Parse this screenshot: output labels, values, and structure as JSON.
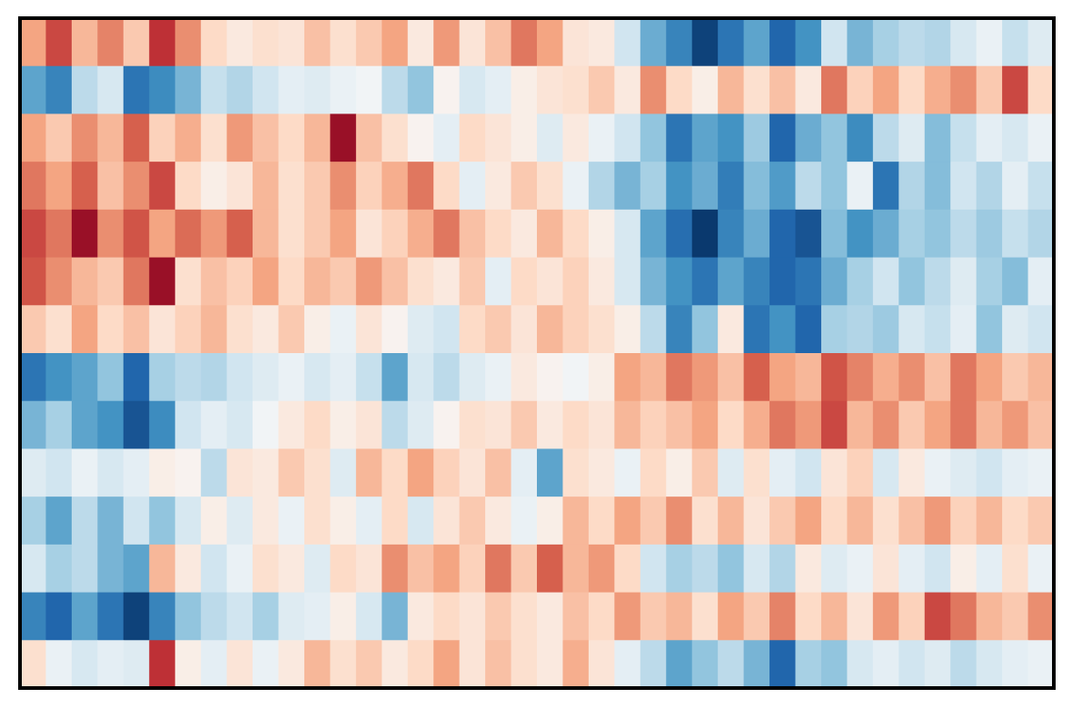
{
  "chart_data": {
    "type": "heatmap",
    "vlim": [
      -3,
      3
    ],
    "colorscale": [
      "#053061",
      "#2166ac",
      "#4393c3",
      "#92c5de",
      "#d1e5f0",
      "#f7f7f7",
      "#fddbc7",
      "#f4a582",
      "#d6604d",
      "#b2182b",
      "#67001f"
    ],
    "values": [
      [
        1.2,
        2.0,
        1.0,
        1.5,
        0.8,
        2.2,
        1.4,
        0.6,
        0.3,
        0.5,
        0.4,
        0.9,
        0.5,
        0.8,
        1.2,
        0.3,
        1.3,
        0.4,
        0.9,
        1.6,
        1.2,
        0.4,
        0.3,
        -0.6,
        -1.5,
        -2.0,
        -2.8,
        -2.2,
        -1.6,
        -2.4,
        -1.8,
        -0.6,
        -1.4,
        -1.0,
        -0.8,
        -0.9,
        -0.5,
        -0.2,
        -0.7,
        -0.4
      ],
      [
        -1.6,
        -2.0,
        -0.8,
        -0.5,
        -2.2,
        -1.9,
        -1.4,
        -0.7,
        -0.9,
        -0.6,
        -0.3,
        -0.4,
        -0.2,
        -0.1,
        -0.8,
        -1.2,
        0.1,
        -0.5,
        -0.3,
        0.2,
        0.4,
        0.5,
        0.8,
        0.3,
        1.4,
        0.6,
        0.2,
        1.0,
        0.5,
        0.9,
        0.3,
        1.6,
        0.7,
        1.2,
        0.6,
        1.1,
        1.4,
        0.8,
        2.0,
        0.6
      ],
      [
        1.2,
        0.8,
        1.4,
        1.0,
        1.8,
        0.7,
        1.1,
        0.5,
        1.3,
        0.9,
        0.6,
        1.0,
        2.6,
        0.9,
        0.5,
        0.1,
        -0.3,
        0.6,
        0.4,
        0.2,
        -0.4,
        0.3,
        -0.2,
        -0.6,
        -1.2,
        -2.2,
        -1.6,
        -1.8,
        -1.1,
        -2.4,
        -1.5,
        -1.2,
        -1.9,
        -0.8,
        -0.4,
        -1.3,
        -0.7,
        -0.3,
        -0.5,
        -0.2
      ],
      [
        1.6,
        1.2,
        1.8,
        0.9,
        1.4,
        2.0,
        0.6,
        0.2,
        0.4,
        1.0,
        0.5,
        0.8,
        1.4,
        0.7,
        1.1,
        1.6,
        0.6,
        -0.3,
        0.3,
        0.8,
        0.5,
        -0.2,
        -0.9,
        -1.4,
        -1.0,
        -1.8,
        -1.5,
        -2.1,
        -1.3,
        -1.7,
        -0.8,
        -1.2,
        -0.2,
        -2.2,
        -0.9,
        -1.3,
        -0.6,
        -0.9,
        -0.3,
        -0.7
      ],
      [
        2.0,
        1.6,
        2.6,
        1.4,
        1.9,
        1.2,
        1.7,
        1.3,
        1.8,
        1.0,
        0.5,
        0.8,
        1.2,
        0.4,
        0.7,
        1.1,
        1.6,
        0.9,
        0.6,
        0.3,
        1.0,
        0.6,
        0.2,
        -0.5,
        -1.6,
        -2.3,
        -2.9,
        -2.0,
        -1.5,
        -2.4,
        -2.6,
        -1.3,
        -1.8,
        -1.5,
        -1.0,
        -1.2,
        -0.8,
        -1.1,
        -0.7,
        -0.9
      ],
      [
        1.9,
        1.4,
        1.0,
        0.8,
        1.6,
        2.6,
        0.5,
        0.9,
        0.7,
        1.2,
        0.6,
        1.0,
        0.8,
        1.3,
        0.9,
        0.5,
        0.3,
        0.8,
        -0.3,
        0.6,
        0.4,
        0.7,
        0.3,
        -0.5,
        -1.4,
        -1.8,
        -2.2,
        -1.6,
        -2.0,
        -2.4,
        -2.2,
        -1.5,
        -1.0,
        -0.6,
        -1.2,
        -0.8,
        -0.4,
        -1.0,
        -1.3,
        -0.3
      ],
      [
        0.8,
        0.5,
        1.2,
        0.6,
        0.9,
        0.4,
        0.7,
        1.0,
        0.5,
        0.3,
        0.8,
        0.2,
        -0.2,
        0.4,
        0.1,
        -0.4,
        -0.6,
        0.6,
        0.8,
        0.4,
        1.0,
        0.7,
        0.5,
        0.2,
        -0.8,
        -2.0,
        -1.2,
        0.3,
        -2.2,
        -1.8,
        -2.4,
        -1.0,
        -0.9,
        -1.1,
        -0.5,
        -0.7,
        -0.3,
        -1.2,
        -0.4,
        -0.6
      ],
      [
        -2.2,
        -1.8,
        -1.6,
        -1.2,
        -2.4,
        -1.0,
        -0.8,
        -0.9,
        -0.6,
        -0.4,
        -0.2,
        -0.5,
        -0.3,
        -0.7,
        -1.6,
        -0.5,
        -0.8,
        -0.4,
        -0.2,
        0.3,
        0.1,
        -0.1,
        0.2,
        1.2,
        1.0,
        1.6,
        1.3,
        0.9,
        1.8,
        1.2,
        1.0,
        1.9,
        1.5,
        1.1,
        1.4,
        0.9,
        1.6,
        1.2,
        0.8,
        1.0
      ],
      [
        -1.4,
        -1.0,
        -1.6,
        -1.8,
        -2.6,
        -1.9,
        -0.6,
        -0.3,
        -0.5,
        -0.1,
        0.3,
        0.6,
        0.2,
        0.4,
        -0.8,
        -0.4,
        0.1,
        0.5,
        0.4,
        0.8,
        0.3,
        0.6,
        0.4,
        1.0,
        0.7,
        0.9,
        1.2,
        0.6,
        1.1,
        1.6,
        1.3,
        2.0,
        1.0,
        1.4,
        0.8,
        1.2,
        1.6,
        1.0,
        1.3,
        0.9
      ],
      [
        -0.4,
        -0.6,
        -0.2,
        -0.5,
        -0.3,
        0.2,
        0.1,
        -0.8,
        0.4,
        0.3,
        0.8,
        0.5,
        -0.4,
        1.0,
        0.6,
        1.2,
        0.7,
        0.4,
        0.9,
        -0.3,
        -1.6,
        0.5,
        0.3,
        -0.2,
        0.6,
        0.2,
        0.8,
        -0.4,
        0.5,
        -0.3,
        -0.6,
        0.4,
        0.7,
        -0.5,
        0.3,
        -0.2,
        -0.4,
        -0.6,
        -0.3,
        -0.2
      ],
      [
        -1.0,
        -1.6,
        -0.8,
        -1.4,
        -0.6,
        -1.2,
        -0.5,
        0.2,
        -0.4,
        0.3,
        -0.2,
        0.5,
        0.2,
        -0.3,
        0.6,
        -0.5,
        0.4,
        0.8,
        0.3,
        -0.2,
        0.2,
        1.0,
        0.6,
        1.2,
        0.8,
        1.4,
        0.5,
        1.0,
        0.4,
        0.8,
        1.2,
        0.6,
        1.0,
        0.5,
        0.9,
        1.3,
        0.7,
        1.0,
        0.6,
        0.8
      ],
      [
        -0.5,
        -1.0,
        -0.8,
        -1.4,
        -1.6,
        1.0,
        0.3,
        -0.6,
        -0.2,
        0.5,
        0.3,
        -0.4,
        0.6,
        0.4,
        1.4,
        0.9,
        1.2,
        0.7,
        1.6,
        0.8,
        1.8,
        1.0,
        1.3,
        0.6,
        -0.6,
        -1.0,
        -0.8,
        -1.2,
        -0.5,
        -0.9,
        0.3,
        -0.4,
        -0.2,
        0.4,
        -0.3,
        -0.6,
        0.2,
        -0.3,
        0.5,
        -0.2
      ],
      [
        -2.0,
        -2.4,
        -1.6,
        -2.2,
        -2.8,
        -2.0,
        -1.2,
        -0.8,
        -0.6,
        -1.0,
        -0.4,
        -0.3,
        0.2,
        -0.5,
        -1.4,
        0.3,
        0.6,
        0.4,
        0.8,
        0.5,
        0.3,
        0.9,
        0.6,
        1.3,
        0.8,
        1.0,
        0.5,
        1.2,
        0.8,
        1.5,
        0.6,
        1.0,
        0.4,
        1.3,
        0.7,
        2.0,
        1.6,
        1.0,
        0.8,
        1.4
      ],
      [
        0.5,
        -0.2,
        -0.5,
        -0.3,
        -0.4,
        2.2,
        0.2,
        -0.3,
        0.4,
        -0.2,
        0.3,
        1.0,
        0.5,
        0.8,
        0.3,
        0.6,
        1.2,
        0.4,
        0.9,
        0.5,
        0.3,
        1.1,
        0.4,
        -0.3,
        -0.8,
        -1.6,
        -1.2,
        -0.8,
        -1.4,
        -2.4,
        -1.0,
        -1.2,
        -0.5,
        -0.3,
        -0.6,
        -0.4,
        -0.8,
        -0.5,
        -0.3,
        -0.2
      ]
    ]
  }
}
